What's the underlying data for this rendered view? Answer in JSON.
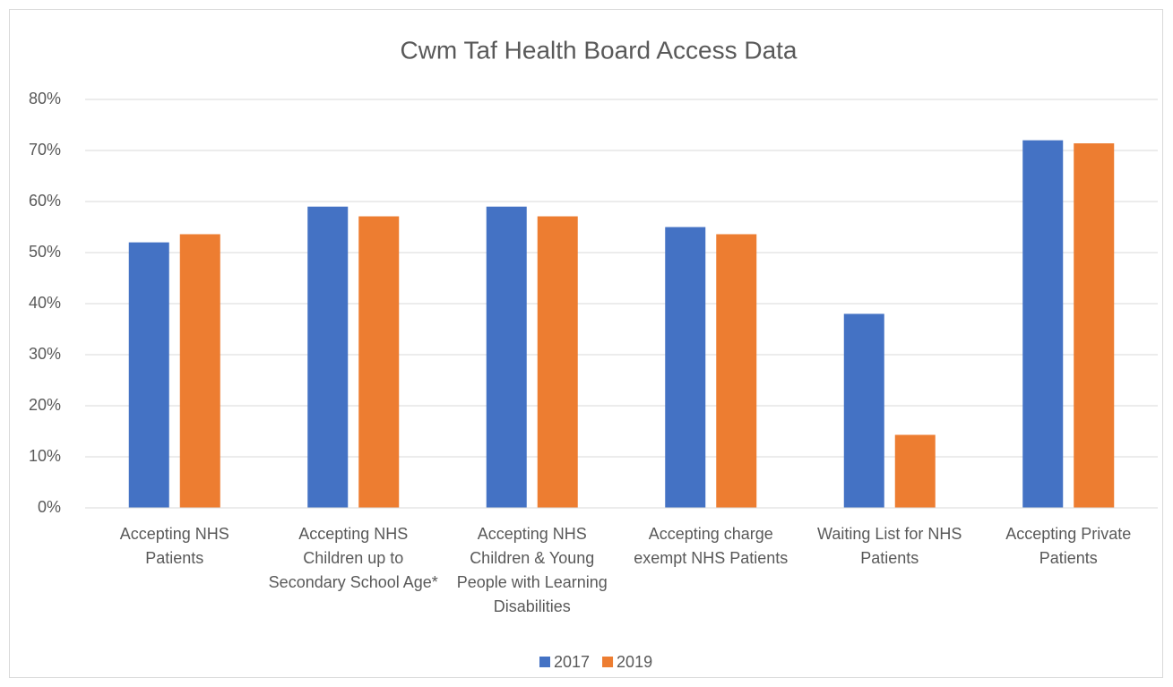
{
  "chart_data": {
    "type": "bar",
    "title": "Cwm Taf Health Board Access Data",
    "categories": [
      "Accepting NHS Patients",
      "Accepting NHS Children up to Secondary School Age*",
      "Accepting NHS Children & Young People with Learning Disabilities",
      "Accepting charge exempt NHS Patients",
      "Waiting List for NHS Patients",
      "Accepting Private Patients"
    ],
    "series": [
      {
        "name": "2017",
        "color": "#4472c4",
        "values": [
          52,
          59,
          59,
          55,
          38,
          72
        ]
      },
      {
        "name": "2019",
        "color": "#ed7d31",
        "values": [
          53.6,
          57.1,
          57.1,
          53.6,
          14.3,
          71.4
        ]
      }
    ],
    "ylim": [
      0,
      80
    ],
    "yticks": [
      {
        "value": 0,
        "label": "0%"
      },
      {
        "value": 10,
        "label": "10%"
      },
      {
        "value": 20,
        "label": "20%"
      },
      {
        "value": 30,
        "label": "30%"
      },
      {
        "value": 40,
        "label": "40%"
      },
      {
        "value": 50,
        "label": "50%"
      },
      {
        "value": 60,
        "label": "60%"
      },
      {
        "value": 70,
        "label": "70%"
      },
      {
        "value": 80,
        "label": "80%"
      }
    ],
    "grid": true,
    "legend": "bottom"
  }
}
